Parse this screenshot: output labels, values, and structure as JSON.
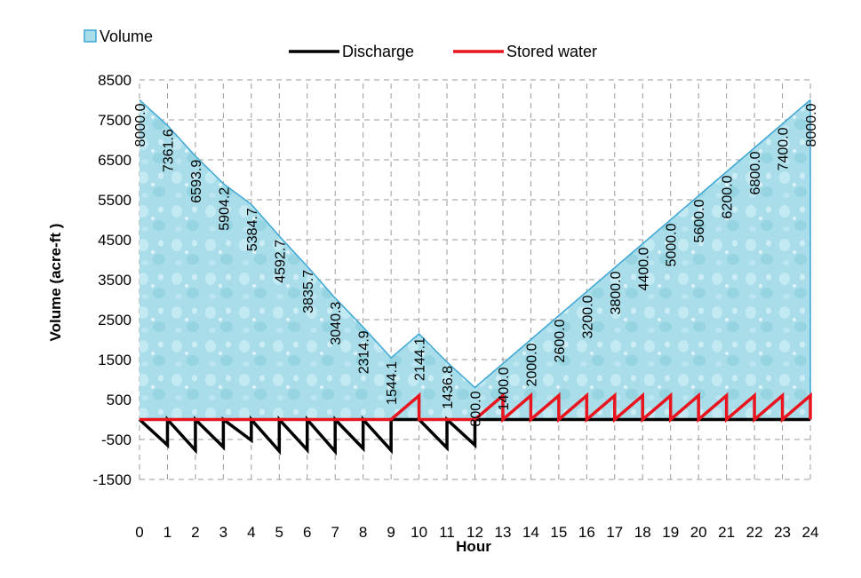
{
  "chart_data": {
    "type": "area",
    "xlabel": "Hour",
    "ylabel": "Volume (acre-ft )",
    "xlim": [
      0,
      24
    ],
    "ylim": [
      -1500,
      8500
    ],
    "x_ticks": [
      0,
      1,
      2,
      3,
      4,
      5,
      6,
      7,
      8,
      9,
      10,
      11,
      12,
      13,
      14,
      15,
      16,
      17,
      18,
      19,
      20,
      21,
      22,
      23,
      24
    ],
    "y_ticks": [
      -1500,
      -500,
      500,
      1500,
      2500,
      3500,
      4500,
      5500,
      6500,
      7500,
      8500
    ],
    "grid": true,
    "legend_position": "top",
    "legend": {
      "volume": "Volume",
      "discharge": "Discharge",
      "stored": "Stored water"
    },
    "colors": {
      "volume_fill": "#a8dde9",
      "volume_line": "#3fa7d6",
      "discharge": "#000000",
      "stored": "#e8141e"
    },
    "volume": {
      "name": "Volume",
      "x": [
        0,
        1,
        2,
        3,
        4,
        5,
        6,
        7,
        8,
        9,
        10,
        11,
        12,
        13,
        14,
        15,
        16,
        17,
        18,
        19,
        20,
        21,
        22,
        23,
        24
      ],
      "values": [
        8000.0,
        7361.6,
        6593.9,
        5904.2,
        5384.7,
        4592.7,
        3835.7,
        3040.3,
        2314.9,
        1544.1,
        2144.1,
        1436.8,
        800.0,
        1400.0,
        2000.0,
        2600.0,
        3200.0,
        3800.0,
        4400.0,
        5000.0,
        5600.0,
        6200.0,
        6800.0,
        7400.0,
        8000.0
      ],
      "labels": [
        "8000.0",
        "7361.6",
        "6593.9",
        "5904.2",
        "5384.7",
        "4592.7",
        "3835.7",
        "3040.3",
        "2314.9",
        "1544.1",
        "2144.1",
        "1436.8",
        "800.0",
        "1400.0",
        "2000.0",
        "2600.0",
        "3200.0",
        "3800.0",
        "4400.0",
        "5000.0",
        "5600.0",
        "6200.0",
        "6800.0",
        "7400.0",
        "8000.0"
      ]
    },
    "discharge": {
      "name": "Discharge",
      "points": [
        [
          0,
          0
        ],
        [
          1,
          -640
        ],
        [
          1,
          0
        ],
        [
          2,
          -770
        ],
        [
          2,
          0
        ],
        [
          3,
          -690
        ],
        [
          3,
          0
        ],
        [
          4,
          -520
        ],
        [
          4,
          0
        ],
        [
          5,
          -790
        ],
        [
          5,
          0
        ],
        [
          6,
          -760
        ],
        [
          6,
          0
        ],
        [
          7,
          -800
        ],
        [
          7,
          0
        ],
        [
          8,
          -725
        ],
        [
          8,
          0
        ],
        [
          9,
          -770
        ],
        [
          9,
          0
        ],
        [
          10,
          0
        ],
        [
          11,
          -710
        ],
        [
          11,
          0
        ],
        [
          12,
          -640
        ],
        [
          12,
          0
        ],
        [
          24,
          0
        ]
      ]
    },
    "stored": {
      "name": "Stored water",
      "points": [
        [
          0,
          0
        ],
        [
          9,
          0
        ],
        [
          10,
          600
        ],
        [
          10,
          0
        ],
        [
          12,
          0
        ],
        [
          13,
          600
        ],
        [
          13,
          0
        ],
        [
          14,
          600
        ],
        [
          14,
          0
        ],
        [
          15,
          600
        ],
        [
          15,
          0
        ],
        [
          16,
          600
        ],
        [
          16,
          0
        ],
        [
          17,
          600
        ],
        [
          17,
          0
        ],
        [
          18,
          600
        ],
        [
          18,
          0
        ],
        [
          19,
          600
        ],
        [
          19,
          0
        ],
        [
          20,
          600
        ],
        [
          20,
          0
        ],
        [
          21,
          600
        ],
        [
          21,
          0
        ],
        [
          22,
          600
        ],
        [
          22,
          0
        ],
        [
          23,
          600
        ],
        [
          23,
          0
        ],
        [
          24,
          600
        ],
        [
          24,
          0
        ]
      ]
    }
  }
}
